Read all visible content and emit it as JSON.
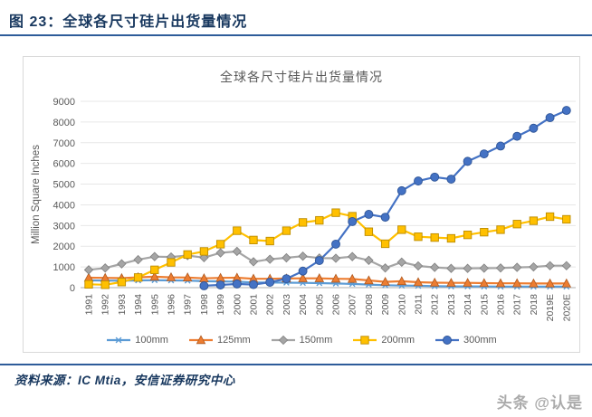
{
  "header": {
    "figure_label": "图 23：全球各尺寸硅片出货量情况"
  },
  "footer": {
    "source": "资料来源：IC Mtia，安信证券研究中心"
  },
  "watermark": {
    "text": "头条 @认是"
  },
  "colors": {
    "accent_rule": "#2E5C9A",
    "header_text": "#17375E",
    "axis_text": "#595959",
    "gridline": "#E7E7E7",
    "axis_line": "#BFBFBF",
    "chart_border": "#D9D9D9"
  },
  "chart_data": {
    "type": "line",
    "title": "全球各尺寸硅片出货量情况",
    "xlabel": "",
    "ylabel": "Million Square Inches",
    "ylim": [
      0,
      9000
    ],
    "ytick_step": 1000,
    "grid": true,
    "legend_position": "bottom",
    "categories": [
      "1991",
      "1992",
      "1993",
      "1994",
      "1995",
      "1996",
      "1997",
      "1998",
      "1999",
      "2000",
      "2001",
      "2002",
      "2003",
      "2004",
      "2005",
      "2006",
      "2007",
      "2008",
      "2009",
      "2010",
      "2011",
      "2012",
      "2013",
      "2014",
      "2015",
      "2016",
      "2017",
      "2018",
      "2019E",
      "2020E"
    ],
    "series": [
      {
        "name": "100mm",
        "marker": "star",
        "color": "#5B9BD5",
        "edge": "#41719C",
        "values": [
          350,
          340,
          330,
          350,
          360,
          350,
          340,
          310,
          300,
          290,
          250,
          250,
          240,
          230,
          220,
          200,
          180,
          150,
          120,
          100,
          90,
          70,
          60,
          60,
          55,
          50,
          50,
          50,
          50,
          50
        ]
      },
      {
        "name": "125mm",
        "marker": "triangle",
        "color": "#ED7D31",
        "edge": "#AE5A21",
        "values": [
          480,
          470,
          460,
          500,
          530,
          500,
          490,
          450,
          470,
          480,
          430,
          430,
          440,
          450,
          450,
          430,
          420,
          350,
          280,
          310,
          260,
          240,
          230,
          230,
          220,
          210,
          210,
          200,
          200,
          200
        ]
      },
      {
        "name": "150mm",
        "marker": "diamond",
        "color": "#A5A5A5",
        "edge": "#7F7F7F",
        "values": [
          860,
          950,
          1150,
          1350,
          1500,
          1480,
          1550,
          1450,
          1680,
          1750,
          1250,
          1370,
          1440,
          1520,
          1430,
          1420,
          1500,
          1320,
          950,
          1230,
          1050,
          980,
          930,
          930,
          940,
          950,
          980,
          1000,
          1060,
          1060
        ]
      },
      {
        "name": "200mm",
        "marker": "square",
        "color": "#FFC000",
        "edge": "#BC8C00",
        "values": [
          160,
          140,
          270,
          490,
          860,
          1220,
          1600,
          1750,
          2100,
          2750,
          2300,
          2250,
          2750,
          3150,
          3250,
          3620,
          3450,
          2700,
          2120,
          2800,
          2460,
          2420,
          2380,
          2550,
          2680,
          2800,
          3070,
          3230,
          3430,
          3300
        ]
      },
      {
        "name": "300mm",
        "marker": "circle",
        "color": "#4472C4",
        "edge": "#2F5597",
        "values": [
          null,
          null,
          null,
          null,
          null,
          null,
          null,
          90,
          130,
          180,
          150,
          260,
          430,
          800,
          1310,
          2100,
          3190,
          3540,
          3400,
          4680,
          5150,
          5340,
          5240,
          6100,
          6460,
          6840,
          7310,
          7700,
          8210,
          8560
        ]
      }
    ]
  }
}
